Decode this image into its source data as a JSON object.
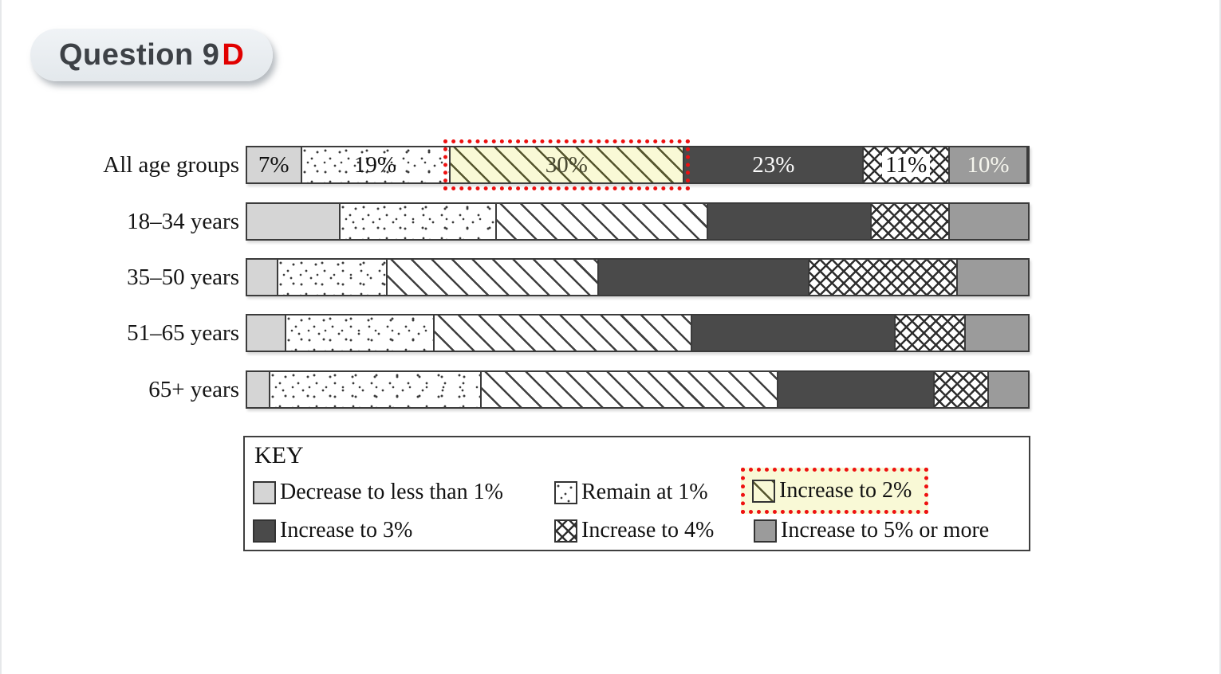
{
  "header": {
    "badge_text": "Question 9",
    "badge_accent": "D"
  },
  "colors": {
    "badge_text": "#3d4146",
    "badge_accent_red": "#e10000",
    "highlight_red": "#ee1111",
    "highlight_yellow": "#f9f9d6",
    "segment_light_gray": "#d5d5d5",
    "segment_dark_gray": "#4a4a4a",
    "segment_medium_gray": "#9b9b9b",
    "bar_border": "#3b3b3b"
  },
  "chart_data": {
    "type": "bar",
    "variant": "horizontal-stacked-100pct",
    "unit": "%",
    "xlim": [
      0,
      100
    ],
    "grid": false,
    "legend_position": "boxed-below",
    "categories": [
      "All age groups",
      "18–34 years",
      "35–50 years",
      "51–65 years",
      "65+ years"
    ],
    "series": [
      {
        "name": "Decrease to less than 1%",
        "pattern": "solid-light",
        "values": [
          7,
          12,
          4,
          5,
          3
        ]
      },
      {
        "name": "Remain at 1%",
        "pattern": "dots",
        "values": [
          19,
          20,
          14,
          19,
          27
        ]
      },
      {
        "name": "Increase to 2%",
        "pattern": "diagonal",
        "values": [
          30,
          27,
          27,
          33,
          38
        ]
      },
      {
        "name": "Increase to 3%",
        "pattern": "solid-dark",
        "values": [
          23,
          21,
          27,
          26,
          20
        ]
      },
      {
        "name": "Increase to 4%",
        "pattern": "crosshatch",
        "values": [
          11,
          10,
          19,
          9,
          7
        ]
      },
      {
        "name": "Increase to 5% or more",
        "pattern": "solid-medium",
        "values": [
          10,
          10,
          9,
          8,
          5
        ]
      }
    ],
    "segment_labels_shown_for": "All age groups",
    "segment_labels": [
      "7%",
      "19%",
      "30%",
      "23%",
      "11%",
      "10%"
    ],
    "highlight": {
      "category_index": 0,
      "series_index": 2,
      "label": "30%",
      "style": "red-dotted-outline-yellow-fill"
    }
  },
  "legend": {
    "title": "KEY",
    "items": [
      {
        "label": "Decrease to less than 1%",
        "pattern": "solid-light"
      },
      {
        "label": "Remain at 1%",
        "pattern": "dots"
      },
      {
        "label": "Increase to 2%",
        "pattern": "diagonal",
        "highlighted": true
      },
      {
        "label": "Increase to 3%",
        "pattern": "solid-dark"
      },
      {
        "label": "Increase to 4%",
        "pattern": "crosshatch"
      },
      {
        "label": "Increase to 5% or more",
        "pattern": "solid-medium"
      }
    ]
  }
}
